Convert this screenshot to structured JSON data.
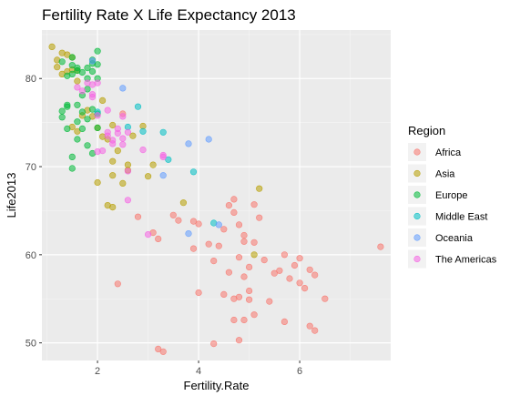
{
  "chart_data": {
    "type": "scatter",
    "title": "Fertility Rate X Life Expectancy 2013",
    "xlabel": "Fertility.Rate",
    "ylabel": "Life2013",
    "xlim": [
      0.9,
      7.8
    ],
    "ylim": [
      48.0,
      85.5
    ],
    "x_ticks": [
      2,
      4,
      6
    ],
    "x_minor": [
      1,
      3,
      5,
      7
    ],
    "y_ticks": [
      50,
      60,
      70,
      80
    ],
    "y_minor": [
      55,
      65,
      75,
      85
    ],
    "grid": true,
    "legend": {
      "title": "Region",
      "position": "right"
    },
    "series": [
      {
        "name": "Africa",
        "color": "#F8766D",
        "points": [
          [
            2.4,
            56.7
          ],
          [
            2.5,
            76.0
          ],
          [
            2.8,
            64.3
          ],
          [
            3.1,
            62.5
          ],
          [
            3.2,
            61.8
          ],
          [
            3.2,
            49.3
          ],
          [
            3.3,
            49.0
          ],
          [
            3.6,
            63.9
          ],
          [
            3.5,
            64.5
          ],
          [
            3.9,
            63.8
          ],
          [
            4.0,
            63.5
          ],
          [
            3.9,
            60.7
          ],
          [
            4.0,
            55.7
          ],
          [
            4.2,
            61.2
          ],
          [
            4.3,
            59.3
          ],
          [
            4.4,
            61.0
          ],
          [
            4.5,
            62.9
          ],
          [
            4.6,
            65.6
          ],
          [
            4.7,
            64.8
          ],
          [
            4.7,
            66.3
          ],
          [
            4.8,
            63.4
          ],
          [
            4.9,
            62.2
          ],
          [
            4.5,
            55.5
          ],
          [
            4.6,
            58.0
          ],
          [
            4.7,
            55.0
          ],
          [
            4.8,
            55.2
          ],
          [
            4.3,
            49.9
          ],
          [
            4.7,
            52.6
          ],
          [
            4.8,
            50.3
          ],
          [
            4.9,
            61.5
          ],
          [
            5.0,
            58.6
          ],
          [
            5.0,
            55.9
          ],
          [
            4.8,
            59.7
          ],
          [
            4.9,
            57.5
          ],
          [
            5.0,
            54.9
          ],
          [
            4.9,
            52.6
          ],
          [
            5.1,
            61.4
          ],
          [
            5.1,
            53.2
          ],
          [
            5.1,
            65.7
          ],
          [
            5.2,
            64.2
          ],
          [
            5.3,
            59.4
          ],
          [
            5.4,
            54.7
          ],
          [
            5.5,
            57.9
          ],
          [
            5.6,
            58.2
          ],
          [
            5.7,
            52.4
          ],
          [
            5.7,
            60.0
          ],
          [
            5.8,
            57.3
          ],
          [
            5.9,
            58.8
          ],
          [
            6.0,
            56.8
          ],
          [
            6.0,
            59.6
          ],
          [
            6.1,
            56.2
          ],
          [
            6.2,
            51.9
          ],
          [
            6.2,
            58.3
          ],
          [
            6.3,
            57.7
          ],
          [
            6.3,
            51.4
          ],
          [
            6.5,
            55.0
          ],
          [
            7.6,
            60.9
          ]
        ]
      },
      {
        "name": "Asia",
        "color": "#B79F00",
        "points": [
          [
            1.1,
            83.6
          ],
          [
            1.2,
            82.1
          ],
          [
            1.2,
            81.3
          ],
          [
            1.3,
            80.5
          ],
          [
            1.3,
            82.9
          ],
          [
            1.4,
            80.8
          ],
          [
            1.4,
            82.7
          ],
          [
            1.5,
            82.4
          ],
          [
            1.5,
            81.0
          ],
          [
            1.6,
            80.9
          ],
          [
            1.6,
            79.7
          ],
          [
            1.5,
            74.5
          ],
          [
            1.6,
            74.0
          ],
          [
            1.7,
            75.8
          ],
          [
            1.8,
            76.4
          ],
          [
            1.9,
            75.7
          ],
          [
            2.0,
            74.4
          ],
          [
            2.0,
            68.2
          ],
          [
            2.1,
            77.5
          ],
          [
            2.1,
            73.4
          ],
          [
            2.2,
            73.1
          ],
          [
            2.2,
            65.6
          ],
          [
            2.3,
            65.4
          ],
          [
            2.3,
            74.7
          ],
          [
            2.3,
            70.6
          ],
          [
            2.3,
            69.0
          ],
          [
            2.4,
            71.8
          ],
          [
            2.5,
            68.1
          ],
          [
            2.6,
            70.2
          ],
          [
            2.6,
            69.6
          ],
          [
            2.7,
            73.5
          ],
          [
            2.9,
            74.6
          ],
          [
            3.0,
            68.9
          ],
          [
            3.1,
            70.2
          ],
          [
            3.7,
            65.9
          ],
          [
            5.1,
            60.0
          ],
          [
            5.2,
            67.5
          ]
        ]
      },
      {
        "name": "Europe",
        "color": "#00BA38",
        "points": [
          [
            1.3,
            81.9
          ],
          [
            1.3,
            76.3
          ],
          [
            1.3,
            75.6
          ],
          [
            1.4,
            77.0
          ],
          [
            1.4,
            74.3
          ],
          [
            1.4,
            76.8
          ],
          [
            1.4,
            80.3
          ],
          [
            1.5,
            80.5
          ],
          [
            1.5,
            81.5
          ],
          [
            1.5,
            82.4
          ],
          [
            1.5,
            71.1
          ],
          [
            1.5,
            69.8
          ],
          [
            1.6,
            73.1
          ],
          [
            1.6,
            75.1
          ],
          [
            1.6,
            77.0
          ],
          [
            1.6,
            80.9
          ],
          [
            1.6,
            81.2
          ],
          [
            1.7,
            74.3
          ],
          [
            1.7,
            76.2
          ],
          [
            1.7,
            78.1
          ],
          [
            1.7,
            80.7
          ],
          [
            1.8,
            81.2
          ],
          [
            1.8,
            75.4
          ],
          [
            1.8,
            72.4
          ],
          [
            1.8,
            78.8
          ],
          [
            1.8,
            80.0
          ],
          [
            1.9,
            81.7
          ],
          [
            1.9,
            82.1
          ],
          [
            1.9,
            76.5
          ],
          [
            1.9,
            71.5
          ],
          [
            2.0,
            81.6
          ],
          [
            2.0,
            80.0
          ],
          [
            2.0,
            83.1
          ],
          [
            2.0,
            74.4
          ],
          [
            2.0,
            76.0
          ],
          [
            1.9,
            80.8
          ]
        ]
      },
      {
        "name": "Middle East",
        "color": "#00BFC4",
        "points": [
          [
            2.0,
            76.2
          ],
          [
            2.6,
            74.5
          ],
          [
            2.8,
            76.8
          ],
          [
            2.9,
            74.0
          ],
          [
            3.3,
            73.9
          ],
          [
            3.4,
            70.8
          ],
          [
            3.9,
            69.4
          ],
          [
            4.3,
            63.6
          ]
        ]
      },
      {
        "name": "Oceania",
        "color": "#619CFF",
        "points": [
          [
            1.9,
            82.0
          ],
          [
            2.5,
            78.9
          ],
          [
            3.3,
            69.0
          ],
          [
            3.8,
            72.6
          ],
          [
            3.8,
            62.4
          ],
          [
            4.2,
            73.1
          ],
          [
            4.4,
            63.4
          ]
        ]
      },
      {
        "name": "The Americas",
        "color": "#F564E3",
        "points": [
          [
            1.6,
            79.0
          ],
          [
            1.7,
            78.6
          ],
          [
            1.8,
            79.5
          ],
          [
            1.9,
            79.3
          ],
          [
            1.9,
            78.2
          ],
          [
            1.9,
            77.9
          ],
          [
            2.0,
            75.8
          ],
          [
            2.0,
            79.5
          ],
          [
            2.0,
            71.7
          ],
          [
            2.1,
            71.8
          ],
          [
            2.2,
            73.9
          ],
          [
            2.2,
            73.5
          ],
          [
            2.2,
            76.4
          ],
          [
            2.3,
            73.0
          ],
          [
            2.3,
            72.6
          ],
          [
            2.4,
            74.3
          ],
          [
            2.4,
            73.8
          ],
          [
            2.5,
            75.7
          ],
          [
            2.5,
            73.2
          ],
          [
            2.5,
            72.5
          ],
          [
            2.6,
            73.9
          ],
          [
            2.6,
            69.5
          ],
          [
            2.6,
            66.2
          ],
          [
            2.9,
            71.9
          ],
          [
            3.0,
            62.3
          ],
          [
            3.3,
            71.3
          ],
          [
            3.3,
            71.1
          ]
        ]
      }
    ]
  }
}
